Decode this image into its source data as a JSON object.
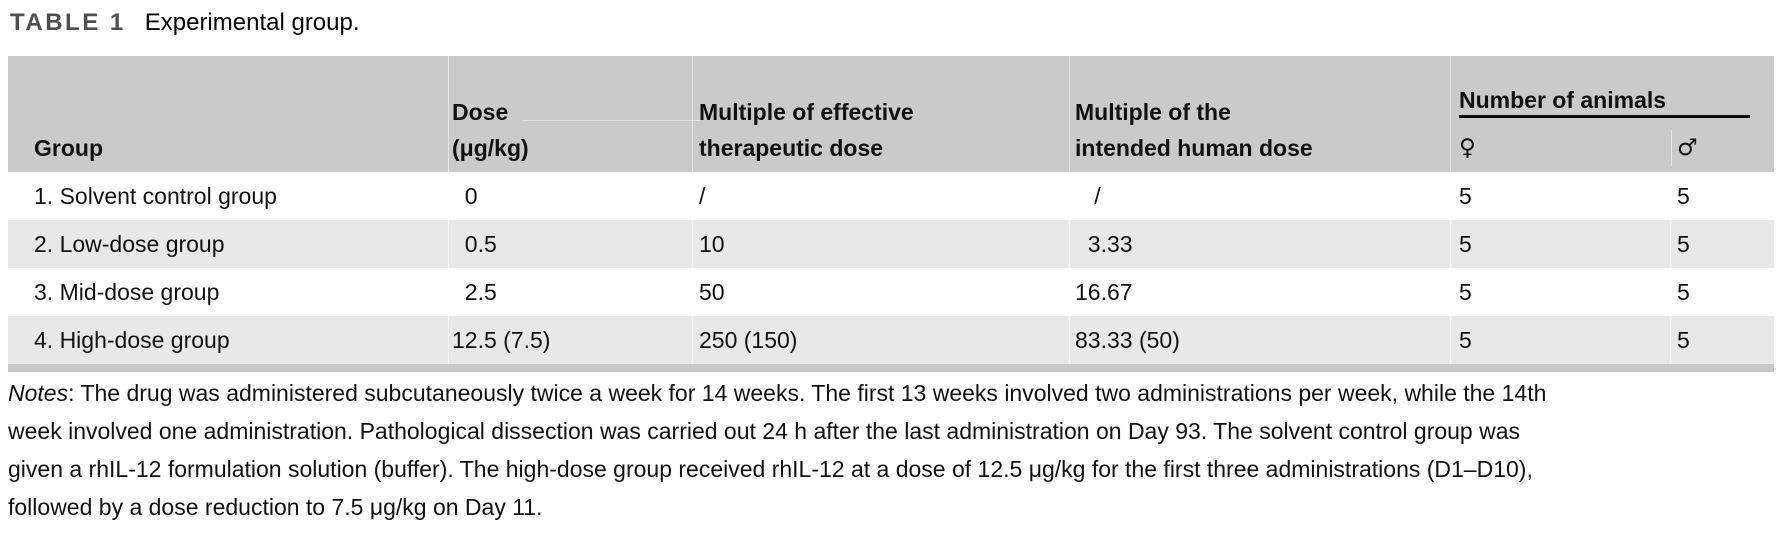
{
  "caption": {
    "label": "TABLE 1",
    "title": "Experimental group."
  },
  "table": {
    "headers": {
      "group": "Group",
      "dose": [
        "Dose",
        "(μg/kg)"
      ],
      "multiple_effective": [
        "Multiple of effective",
        "therapeutic dose"
      ],
      "multiple_human": [
        "Multiple of the",
        "intended human dose"
      ],
      "number_of_animals": "Number of animals",
      "female_symbol": "♀",
      "male_symbol": "♂"
    },
    "rows": [
      {
        "group": "1. Solvent control group",
        "dose": "0",
        "multiple_effective": "/",
        "multiple_human": "/",
        "females": "5",
        "males": "5"
      },
      {
        "group": "2. Low-dose group",
        "dose": "0.5",
        "multiple_effective": "10",
        "multiple_human": "3.33",
        "females": "5",
        "males": "5"
      },
      {
        "group": "3. Mid-dose group",
        "dose": "2.5",
        "multiple_effective": "50",
        "multiple_human": "16.67",
        "females": "5",
        "males": "5"
      },
      {
        "group": "4. High-dose group",
        "dose": "12.5 (7.5)",
        "multiple_effective": "250 (150)",
        "multiple_human": "83.33 (50)",
        "females": "5",
        "males": "5"
      }
    ]
  },
  "notes": {
    "label": "Notes",
    "text": ": The drug was administered subcutaneously twice a week for 14 weeks. The first 13 weeks involved two administrations per week, while the 14th week involved one administration. Pathological dissection was carried out 24 h after the last administration on Day 93. The solvent control group was given a rhIL-12 formulation solution (buffer). The high-dose group received rhIL-12 at a dose of 12.5 μg/kg for the first three administrations (D1–D10), followed by a dose reduction to 7.5 μg/kg on Day 11."
  },
  "colors": {
    "header_bg": "#cacaca",
    "row_alt_bg": "#e8e8e8",
    "bottom_rule": "#c8c8c8",
    "caption_label": "#4f4f4f",
    "animals_rule": "#0a0a0a"
  }
}
